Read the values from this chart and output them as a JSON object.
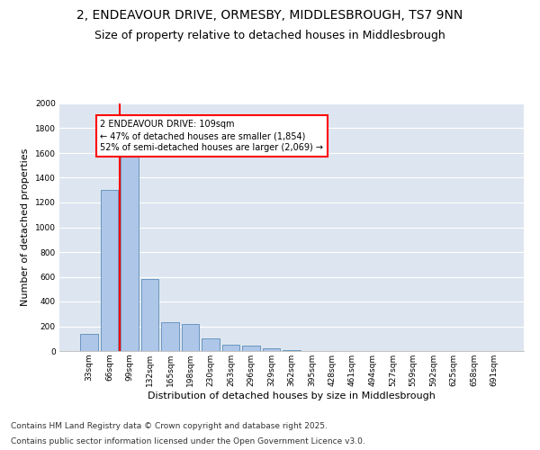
{
  "title_line1": "2, ENDEAVOUR DRIVE, ORMESBY, MIDDLESBROUGH, TS7 9NN",
  "title_line2": "Size of property relative to detached houses in Middlesbrough",
  "xlabel": "Distribution of detached houses by size in Middlesbrough",
  "ylabel": "Number of detached properties",
  "categories": [
    "33sqm",
    "66sqm",
    "99sqm",
    "132sqm",
    "165sqm",
    "198sqm",
    "230sqm",
    "263sqm",
    "296sqm",
    "329sqm",
    "362sqm",
    "395sqm",
    "428sqm",
    "461sqm",
    "494sqm",
    "527sqm",
    "559sqm",
    "592sqm",
    "625sqm",
    "658sqm",
    "691sqm"
  ],
  "values": [
    140,
    1300,
    1590,
    580,
    230,
    220,
    100,
    50,
    45,
    25,
    10,
    2,
    0,
    0,
    0,
    0,
    0,
    0,
    0,
    0,
    0
  ],
  "bar_color": "#aec6e8",
  "bar_edge_color": "#5b8db8",
  "vline_color": "red",
  "vline_position": 1.5,
  "annotation_text": "2 ENDEAVOUR DRIVE: 109sqm\n← 47% of detached houses are smaller (1,854)\n52% of semi-detached houses are larger (2,069) →",
  "ylim": [
    0,
    2000
  ],
  "yticks": [
    0,
    200,
    400,
    600,
    800,
    1000,
    1200,
    1400,
    1600,
    1800,
    2000
  ],
  "background_color": "#dde6f0",
  "grid_color": "#ffffff",
  "footer_line1": "Contains HM Land Registry data © Crown copyright and database right 2025.",
  "footer_line2": "Contains public sector information licensed under the Open Government Licence v3.0.",
  "title_fontsize": 10,
  "subtitle_fontsize": 9,
  "axis_label_fontsize": 8,
  "tick_fontsize": 6.5,
  "annot_fontsize": 7,
  "footer_fontsize": 6.5
}
